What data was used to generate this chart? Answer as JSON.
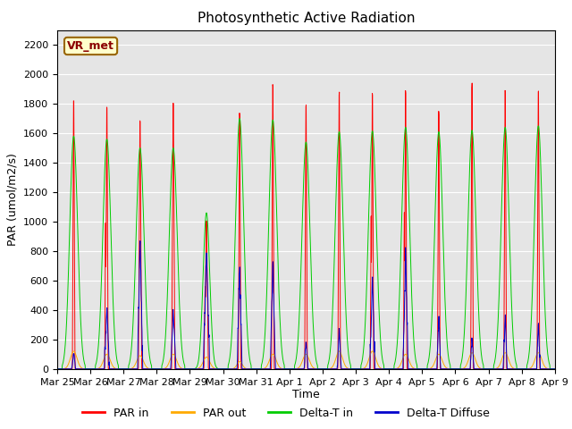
{
  "title": "Photosynthetic Active Radiation",
  "ylabel": "PAR (umol/m2/s)",
  "xlabel": "Time",
  "station_label": "VR_met",
  "ylim": [
    0,
    2300
  ],
  "yticks": [
    0,
    200,
    400,
    600,
    800,
    1000,
    1200,
    1400,
    1600,
    1800,
    2000,
    2200
  ],
  "bg_color": "#e5e5e5",
  "legend_labels": [
    "PAR in",
    "PAR out",
    "Delta-T in",
    "Delta-T Diffuse"
  ],
  "legend_colors": [
    "#ff0000",
    "#ffaa00",
    "#00cc00",
    "#0000cc"
  ],
  "n_days": 15,
  "pts_per_day": 144,
  "tick_labels": [
    "Mar 25",
    "Mar 26",
    "Mar 27",
    "Mar 28",
    "Mar 29",
    "Mar 30",
    "Mar 31",
    "Apr 1",
    "Apr 2",
    "Apr 3",
    "Apr 4",
    "Apr 5",
    "Apr 6",
    "Apr 7",
    "Apr 8",
    "Apr 9"
  ],
  "day_peaks_par_in": [
    2000,
    1950,
    1800,
    1950,
    1060,
    1900,
    2110,
    1950,
    2040,
    2040,
    2060,
    1900,
    2100,
    2060,
    2070
  ],
  "day_peaks_par_out": [
    120,
    100,
    90,
    100,
    80,
    50,
    100,
    100,
    120,
    120,
    100,
    100,
    110,
    110,
    110
  ],
  "day_peaks_delta_in": [
    1580,
    1560,
    1500,
    1500,
    1060,
    1700,
    1690,
    1540,
    1610,
    1615,
    1640,
    1610,
    1620,
    1640,
    1650
  ],
  "day_peaks_delta_diff": [
    110,
    420,
    880,
    400,
    800,
    720,
    730,
    190,
    260,
    620,
    800,
    370,
    210,
    370,
    295
  ],
  "day_width_par_in": [
    0.04,
    0.04,
    0.05,
    0.05,
    0.06,
    0.04,
    0.04,
    0.04,
    0.04,
    0.04,
    0.04,
    0.04,
    0.04,
    0.04,
    0.04
  ],
  "day_width_par_out": [
    0.1,
    0.1,
    0.1,
    0.1,
    0.1,
    0.08,
    0.1,
    0.1,
    0.1,
    0.1,
    0.1,
    0.1,
    0.1,
    0.1,
    0.1
  ],
  "day_width_delta_in": [
    0.12,
    0.12,
    0.12,
    0.12,
    0.1,
    0.12,
    0.12,
    0.12,
    0.12,
    0.12,
    0.12,
    0.12,
    0.12,
    0.12,
    0.12
  ],
  "day_width_delta_diff": [
    0.06,
    0.08,
    0.08,
    0.08,
    0.1,
    0.08,
    0.08,
    0.06,
    0.06,
    0.08,
    0.08,
    0.06,
    0.06,
    0.06,
    0.06
  ]
}
